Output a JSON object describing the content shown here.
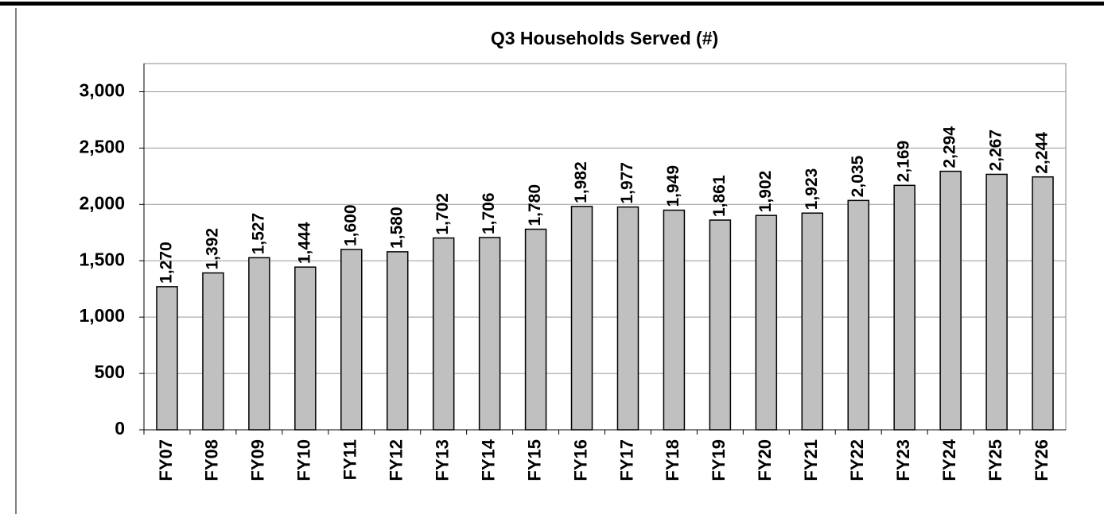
{
  "chart_data": {
    "type": "bar",
    "title": "Q3 Households Served (#)",
    "categories": [
      "FY07",
      "FY08",
      "FY09",
      "FY10",
      "FY11",
      "FY12",
      "FY13",
      "FY14",
      "FY15",
      "FY16",
      "FY17",
      "FY18",
      "FY19",
      "FY20",
      "FY21",
      "FY22",
      "FY23",
      "FY24",
      "FY25",
      "FY26"
    ],
    "values": [
      1270,
      1392,
      1527,
      1444,
      1600,
      1580,
      1702,
      1706,
      1780,
      1982,
      1977,
      1949,
      1861,
      1902,
      1923,
      2035,
      2169,
      2294,
      2267,
      2244
    ],
    "value_labels": [
      "1,270",
      "1,392",
      "1,527",
      "1,444",
      "1,600",
      "1,580",
      "1,702",
      "1,706",
      "1,780",
      "1,982",
      "1,977",
      "1,949",
      "1,861",
      "1,902",
      "1,923",
      "2,035",
      "2,169",
      "2,294",
      "2,267",
      "2,244"
    ],
    "color": "#c0c0c0",
    "ylim": [
      0,
      3250
    ],
    "yticks": [
      0,
      500,
      {
        "value": 1000,
        "label": "1,000"
      },
      {
        "value": 1500,
        "label": "1,500"
      },
      {
        "value": 2000,
        "label": "2,000"
      },
      {
        "value": 2500,
        "label": "2,500"
      },
      {
        "value": 3000,
        "label": "3,000"
      }
    ],
    "grid": true
  }
}
